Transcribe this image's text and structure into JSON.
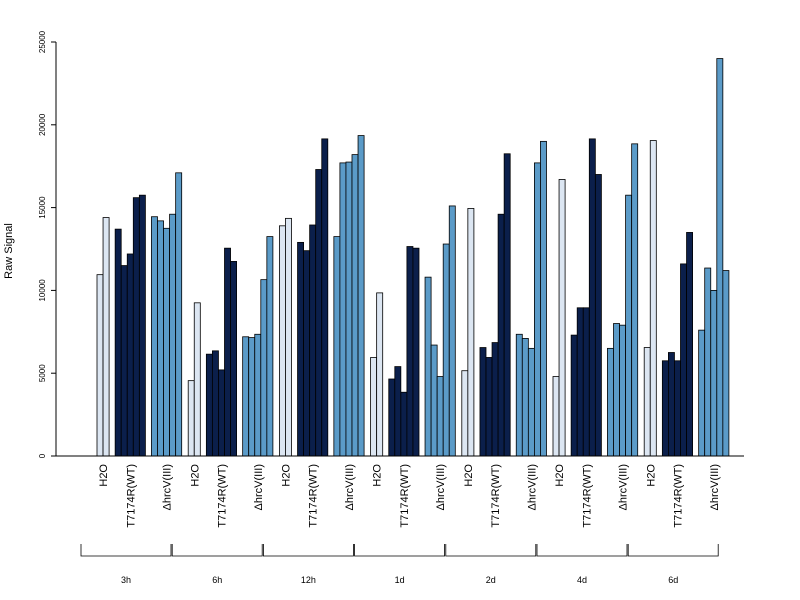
{
  "chart_data": {
    "type": "bar",
    "title": "",
    "xlabel": "",
    "ylabel": "Raw Signal",
    "ylim": [
      0,
      25000
    ],
    "yticks": [
      0,
      5000,
      10000,
      15000,
      20000,
      25000
    ],
    "grid": false,
    "legend": "none",
    "group_labels": [
      "H2O",
      "T7174R(WT)",
      "ΔhrcV(III)"
    ],
    "group_colors": [
      "#DCE6F2",
      "#0B1F4B",
      "#5B9BC8"
    ],
    "time_points": [
      "3h",
      "6h",
      "12h",
      "1d",
      "2d",
      "4d",
      "6d"
    ],
    "values": {
      "3h": [
        [
          10950,
          14400
        ],
        [
          13700,
          11500,
          12200,
          15600,
          15750
        ],
        [
          14450,
          14200,
          13750,
          14600,
          17100
        ]
      ],
      "6h": [
        [
          4550,
          9250
        ],
        [
          6150,
          6350,
          5200,
          12550,
          11750
        ],
        [
          7200,
          7150,
          7350,
          10650,
          13250
        ]
      ],
      "12h": [
        [
          13900,
          14350
        ],
        [
          12900,
          12400,
          13950,
          17300,
          19150
        ],
        [
          13250,
          17700,
          17750,
          18200,
          19350
        ]
      ],
      "1d": [
        [
          5950,
          9850
        ],
        [
          4650,
          5400,
          3850,
          12650,
          12550
        ],
        [
          10800,
          6700,
          4800,
          12800,
          15100
        ]
      ],
      "2d": [
        [
          5150,
          14950
        ],
        [
          6550,
          5950,
          6850,
          14600,
          18250
        ],
        [
          7350,
          7100,
          6500,
          17700,
          19000
        ]
      ],
      "4d": [
        [
          4800,
          16700
        ],
        [
          7300,
          8950,
          8950,
          19150,
          17000
        ],
        [
          6500,
          8000,
          7900,
          15750,
          18850
        ]
      ],
      "6d": [
        [
          6550,
          19050
        ],
        [
          5750,
          6250,
          5750,
          11600,
          13500
        ],
        [
          7600,
          11350,
          10000,
          24000,
          11200
        ]
      ]
    }
  }
}
